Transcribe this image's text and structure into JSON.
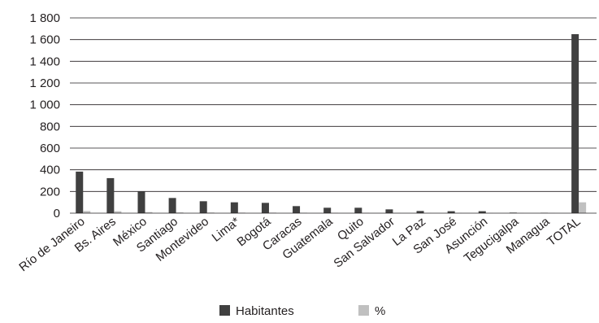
{
  "chart_data": {
    "type": "bar",
    "title": "",
    "xlabel": "",
    "ylabel": "",
    "ylim": [
      0,
      1800
    ],
    "yticks": [
      0,
      200,
      400,
      600,
      800,
      1000,
      1200,
      1400,
      1600,
      1800
    ],
    "ytick_labels": [
      "0",
      "200",
      "400",
      "600",
      "800",
      "1 000",
      "1 200",
      "1 400",
      "1 600",
      "1 800"
    ],
    "grid": "horizontal",
    "legend_position": "bottom",
    "categories": [
      "Río de Janeiro",
      "Bs. Aires",
      "México",
      "Santiago",
      "Montevideo",
      "Lima*",
      "Bogotá",
      "Caracas",
      "Guatemala",
      "Quito",
      "San Salvador",
      "La Paz",
      "San José",
      "Asunción",
      "Tegucigalpa",
      "Managua",
      "TOTAL"
    ],
    "series": [
      {
        "name": "Habitantes",
        "color": "#404040",
        "values": [
          383,
          323,
          200,
          140,
          110,
          100,
          95,
          65,
          50,
          50,
          35,
          20,
          18,
          18,
          5,
          3,
          1650
        ]
      },
      {
        "name": "%",
        "color": "#c0c0c0",
        "values": [
          20,
          18,
          10,
          7,
          6,
          5,
          5,
          4,
          3,
          3,
          2,
          1,
          1,
          1,
          1,
          1,
          100
        ]
      }
    ]
  }
}
